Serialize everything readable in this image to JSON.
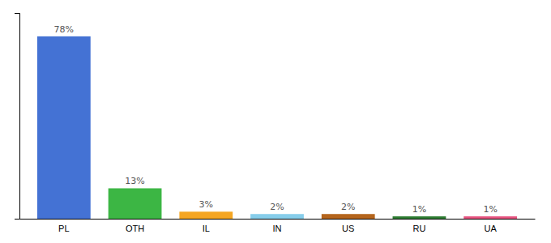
{
  "chart_data": {
    "type": "bar",
    "categories": [
      "PL",
      "OTH",
      "IL",
      "IN",
      "US",
      "RU",
      "UA"
    ],
    "values": [
      78,
      13,
      3,
      2,
      2,
      1,
      1
    ],
    "value_labels": [
      "78%",
      "13%",
      "3%",
      "2%",
      "2%",
      "1%",
      "1%"
    ],
    "colors": [
      "#4472d4",
      "#3cb644",
      "#f5a623",
      "#87ceeb",
      "#b5651d",
      "#2e7d32",
      "#e75480"
    ],
    "ylim": [
      0,
      88
    ],
    "yticks": [],
    "grid": false,
    "data_labels": true,
    "tick_labels": "x"
  }
}
